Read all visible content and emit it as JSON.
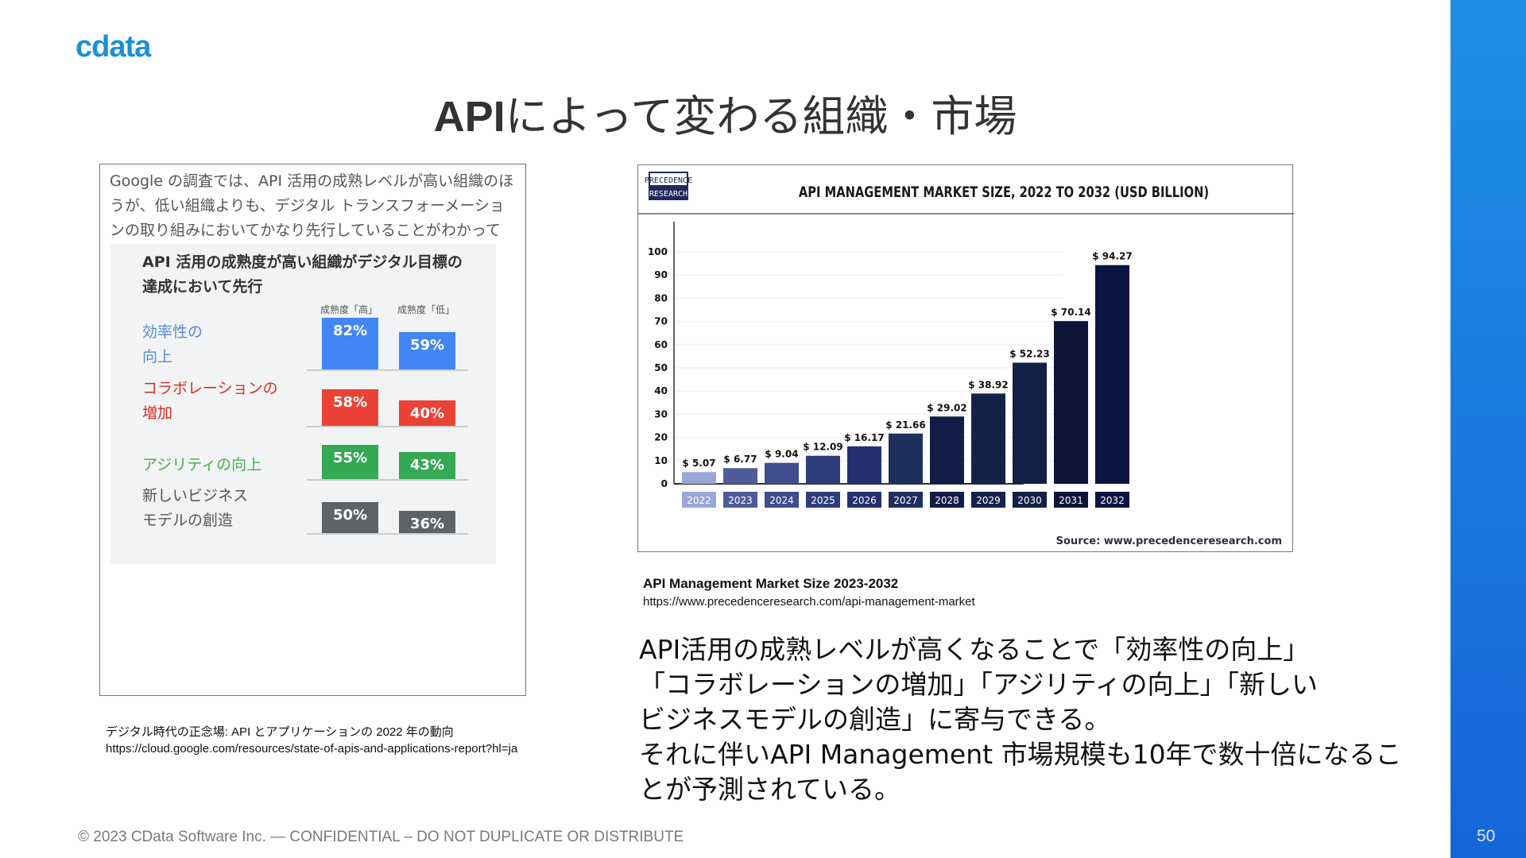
{
  "logo": "cdata",
  "title": {
    "bold": "API",
    "rest": "によって変わる組織・市場"
  },
  "left_panel": {
    "intro": "Google の調査では、API 活用の成熟レベルが高い組織のほうが、低い組織よりも、デジタル トランスフォーメーションの取り組みにおいてかなり先行していることがわかっています。",
    "chart_title": "API 活用の成熟度が高い組織がデジタル目標の達成において先行",
    "col_high": "成熟度「高」",
    "col_low": "成熟度「低」",
    "rows": [
      {
        "label1": "効率性の",
        "label2": "向上",
        "color": "#4285f4",
        "label_color": "#5b8bd0",
        "high": 82,
        "low": 59,
        "high_text": "82%",
        "low_text": "59%"
      },
      {
        "label1": "コラボレーションの",
        "label2": "増加",
        "color": "#ea4335",
        "label_color": "#d93025",
        "high": 58,
        "low": 40,
        "high_text": "58%",
        "low_text": "40%"
      },
      {
        "label1": "アジリティの向上",
        "label2": "",
        "color": "#34a853",
        "label_color": "#4caf50",
        "high": 55,
        "low": 43,
        "high_text": "55%",
        "low_text": "43%"
      },
      {
        "label1": "新しいビジネス",
        "label2": "モデルの創造",
        "color": "#5f6368",
        "label_color": "#555",
        "high": 50,
        "low": 36,
        "high_text": "50%",
        "low_text": "36%"
      }
    ],
    "caption": "デジタル時代の正念場: API とアプリケーションの 2022 年の動向",
    "url": "https://cloud.google.com/resources/state-of-apis-and-applications-report?hl=ja"
  },
  "chart_data": {
    "type": "bar",
    "title": "API MANAGEMENT MARKET SIZE, 2022 TO 2032 (USD BILLION)",
    "logo_line1": "PRECEDENCE",
    "logo_line2": "RESEARCH",
    "categories": [
      "2022",
      "2023",
      "2024",
      "2025",
      "2026",
      "2027",
      "2028",
      "2029",
      "2030",
      "2031",
      "2032"
    ],
    "values": [
      5.07,
      6.77,
      9.04,
      12.09,
      16.17,
      21.66,
      29.02,
      38.92,
      52.23,
      70.14,
      94.27
    ],
    "labels": [
      "$ 5.07",
      "$ 6.77",
      "$ 9.04",
      "$ 12.09",
      "$ 16.17",
      "$ 21.66",
      "$ 29.02",
      "$ 38.92",
      "$ 52.23",
      "$ 70.14",
      "$ 94.27"
    ],
    "colors": [
      "#9aa6d6",
      "#4f5c98",
      "#3f4d8c",
      "#2f3d7c",
      "#24306e",
      "#1e2f5e",
      "#121c46",
      "#14224a",
      "#132045",
      "#0c1538",
      "#0b1440"
    ],
    "yticks": [
      "0",
      "10",
      "20",
      "30",
      "40",
      "50",
      "60",
      "70",
      "80",
      "90",
      "100"
    ],
    "ylim": [
      0,
      100
    ],
    "source": "Source: www.precedenceresearch.com"
  },
  "right_caption": {
    "title": "API Management Market Size 2023-2032",
    "url": "https://www.precedenceresearch.com/api-management-market"
  },
  "body_lines": [
    "API活用の成熟レベルが高くなることで「効率性の向上」",
    "「コラボレーションの増加」「アジリティの向上」「新しい",
    "ビジネスモデルの創造」に寄与できる。",
    "それに伴いAPI Management 市場規模も10年で数十倍になるこ",
    "とが予測されている。"
  ],
  "footer": "© 2023 CData Software Inc. — CONFIDENTIAL – DO NOT DUPLICATE OR DISTRIBUTE",
  "page_number": "50"
}
